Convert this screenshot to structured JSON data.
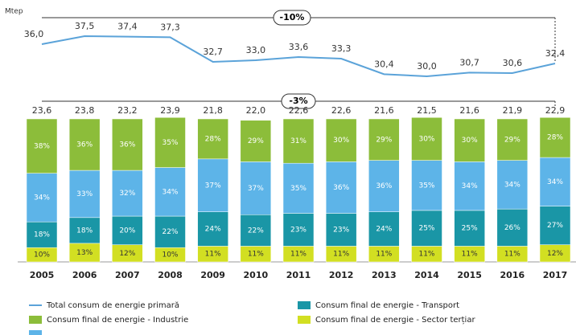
{
  "chart_data": {
    "type": "bar-line",
    "unit_label": "Mtep",
    "categories": [
      "2005",
      "2006",
      "2007",
      "2008",
      "2009",
      "2010",
      "2011",
      "2012",
      "2013",
      "2014",
      "2015",
      "2016",
      "2017"
    ],
    "line": {
      "name": "Total consum de energie primară",
      "color": "#5ba3d9",
      "values": [
        36.0,
        37.5,
        37.4,
        37.3,
        32.7,
        33.0,
        33.6,
        33.3,
        30.4,
        30.0,
        30.7,
        30.6,
        32.4
      ],
      "value_labels": [
        "36,0",
        "37,5",
        "37,4",
        "37,3",
        "32,7",
        "33,0",
        "33,6",
        "33,3",
        "30,4",
        "30,0",
        "30,7",
        "30,6",
        "32,4"
      ],
      "annotation": "-10%"
    },
    "totals": {
      "values": [
        23.6,
        23.8,
        23.2,
        23.9,
        21.8,
        22.0,
        22.6,
        22.6,
        21.6,
        21.5,
        21.6,
        21.9,
        22.9
      ],
      "value_labels": [
        "23,6",
        "23,8",
        "23,2",
        "23,9",
        "21,8",
        "22,0",
        "22,6",
        "22,6",
        "21,6",
        "21,5",
        "21,6",
        "21,9",
        "22,9"
      ],
      "annotation": "-3%"
    },
    "series": [
      {
        "name": "Consum final de energie - Sector terțiar",
        "color": "#d2df22",
        "values": [
          10,
          13,
          12,
          10,
          11,
          11,
          11,
          11,
          11,
          11,
          11,
          11,
          12
        ],
        "value_labels": [
          "10%",
          "13%",
          "12%",
          "10%",
          "11%",
          "11%",
          "11%",
          "11%",
          "11%",
          "11%",
          "11%",
          "11%",
          "12%"
        ]
      },
      {
        "name": "Consum final de energie - Transport",
        "color": "#1a96a6",
        "values": [
          18,
          18,
          20,
          22,
          24,
          22,
          23,
          23,
          24,
          25,
          25,
          26,
          27
        ],
        "value_labels": [
          "18%",
          "18%",
          "20%",
          "22%",
          "24%",
          "22%",
          "23%",
          "23%",
          "24%",
          "25%",
          "25%",
          "26%",
          "27%"
        ]
      },
      {
        "color": "#5db4e8",
        "values": [
          34,
          33,
          32,
          34,
          37,
          37,
          35,
          36,
          36,
          35,
          34,
          34,
          34
        ],
        "value_labels": [
          "34%",
          "33%",
          "32%",
          "34%",
          "37%",
          "37%",
          "35%",
          "36%",
          "36%",
          "35%",
          "34%",
          "34%",
          "34%"
        ]
      },
      {
        "name": "Consum final de energie - Industrie",
        "color": "#8cbd3a",
        "values": [
          38,
          36,
          36,
          35,
          28,
          29,
          31,
          30,
          29,
          30,
          30,
          29,
          28
        ],
        "value_labels": [
          "38%",
          "36%",
          "36%",
          "35%",
          "28%",
          "29%",
          "31%",
          "30%",
          "29%",
          "30%",
          "30%",
          "29%",
          "28%"
        ]
      }
    ]
  }
}
